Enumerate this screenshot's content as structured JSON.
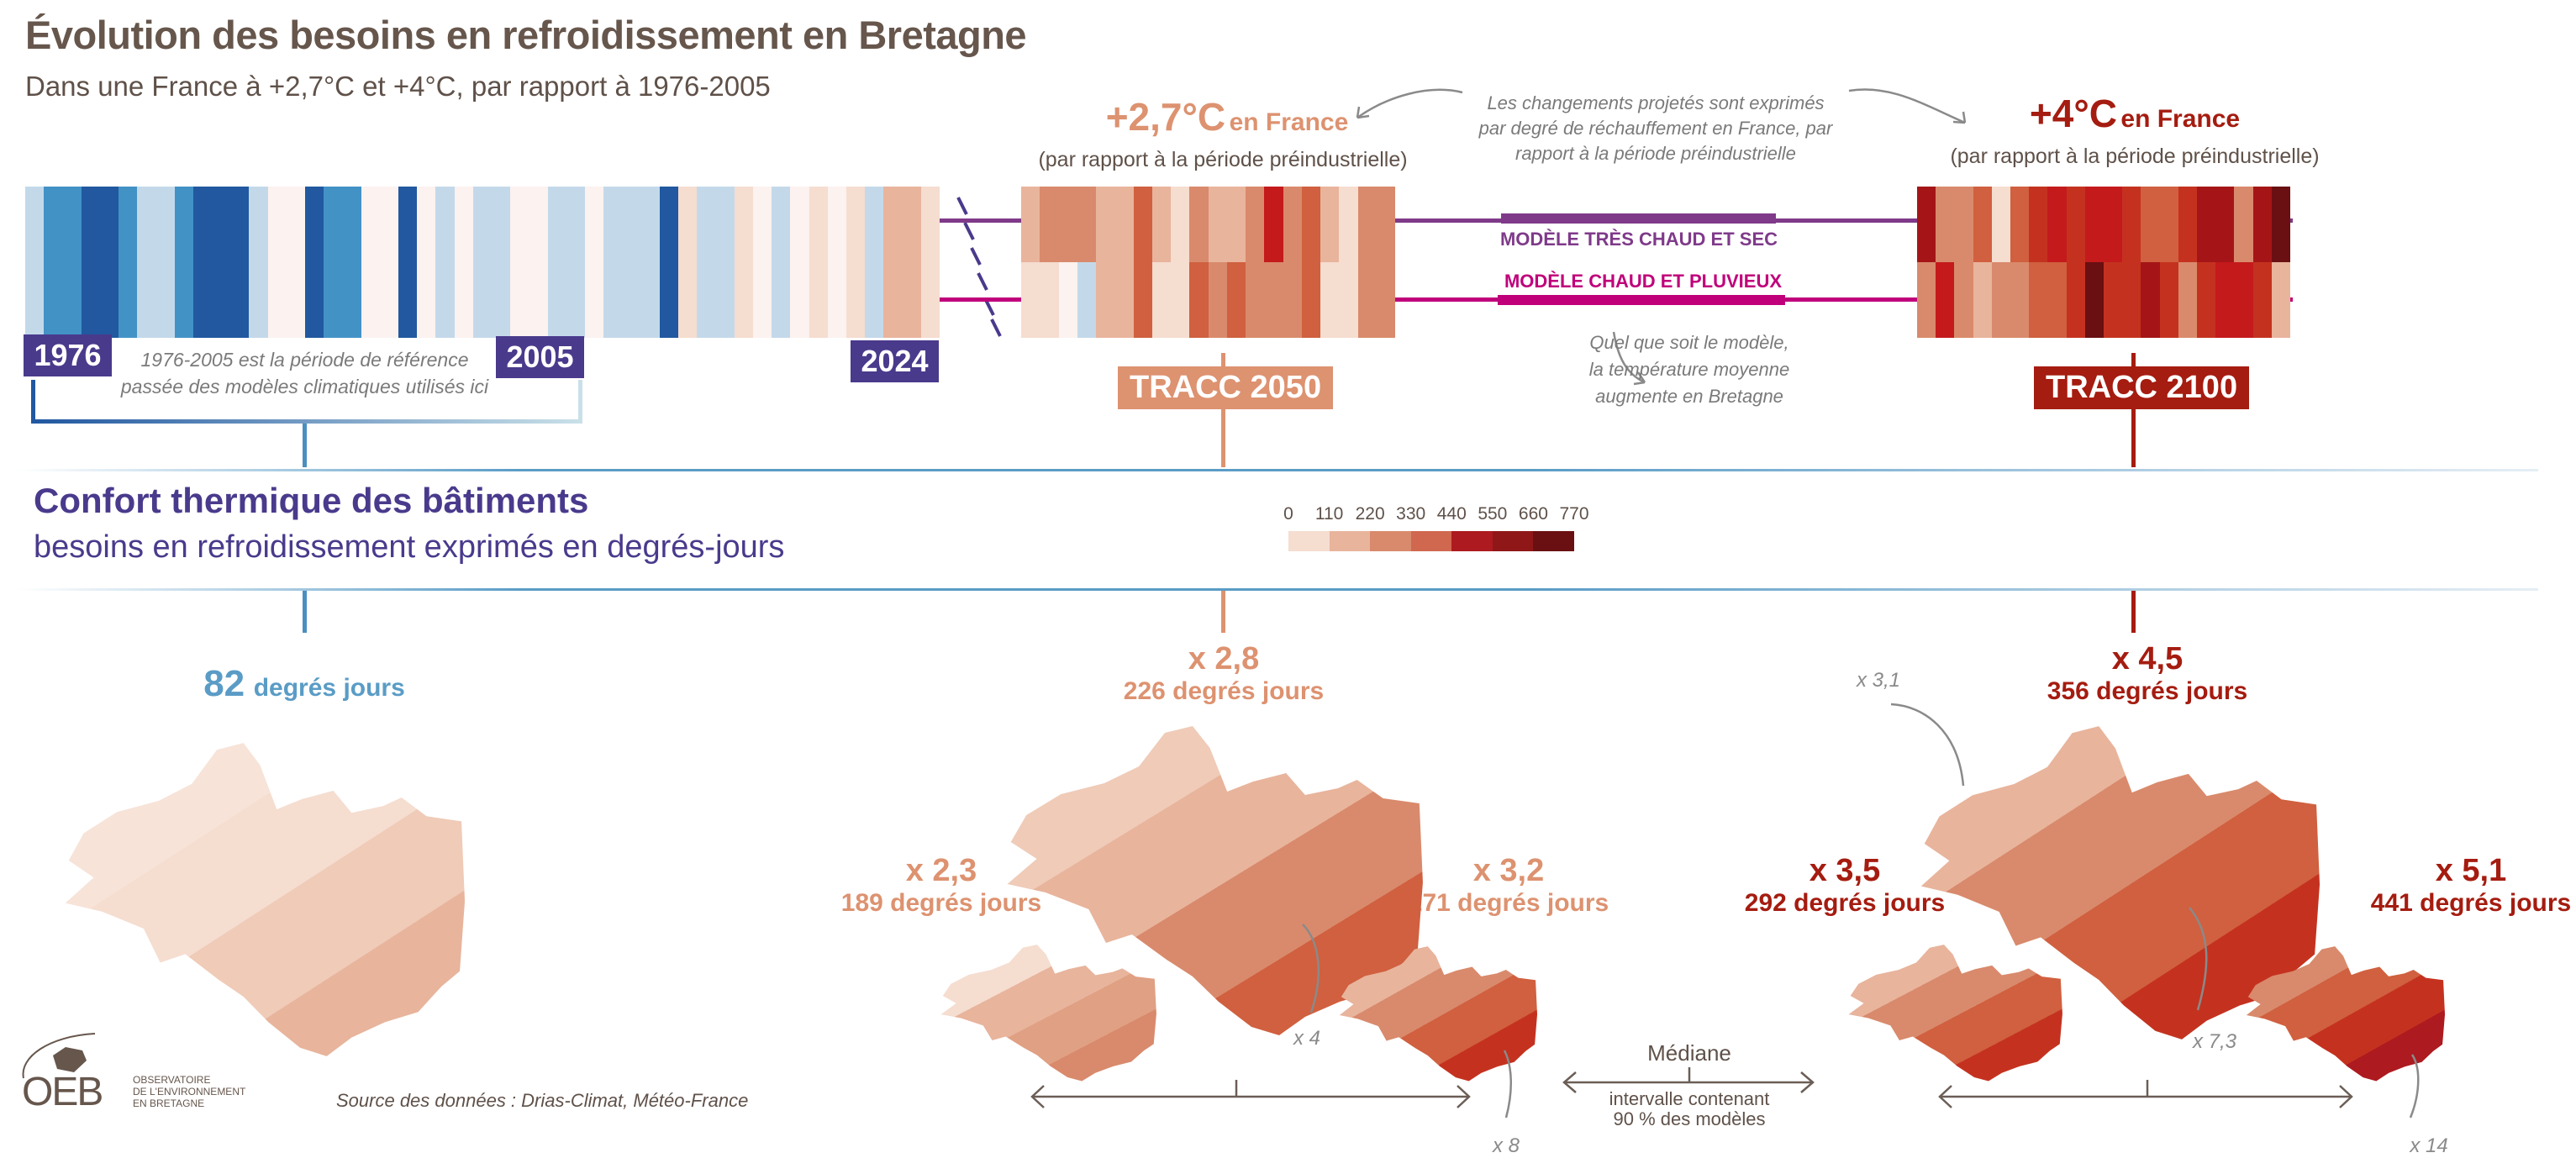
{
  "header": {
    "title": "Évolution des besoins en refroidissement en Bretagne",
    "subtitle": "Dans une France à +2,7°C et +4°C, par rapport à 1976-2005"
  },
  "palette": {
    "b3": "#2158a0",
    "b2": "#4292c6",
    "b1": "#c3d9ea",
    "c": "#fcf2ef",
    "p1": "#f5ddd0",
    "s2": "#e8b49c",
    "s3": "#d98a6c",
    "s4": "#d0603f",
    "r1": "#c41a1c",
    "r2": "#a51517",
    "r3": "#c4321f",
    "r4": "#6a0f12"
  },
  "stripes": {
    "historic": [
      "b1",
      "b2",
      "b2",
      "b3",
      "b3",
      "b2",
      "b1",
      "b1",
      "b2",
      "b3",
      "b3",
      "b3",
      "b1",
      "c",
      "c",
      "b3",
      "b2",
      "b2",
      "c",
      "c",
      "b3",
      "c",
      "b1",
      "c",
      "b1",
      "b1",
      "c",
      "c",
      "b1",
      "b1",
      "c",
      "b1",
      "b1",
      "b1",
      "b3",
      "p1",
      "b1",
      "b1",
      "p1",
      "c",
      "b1",
      "c",
      "p1",
      "c",
      "p1",
      "b1",
      "s2",
      "s2",
      "p1"
    ],
    "tracc2050_hot_dry": [
      "s2",
      "s3",
      "s3",
      "s3",
      "s2",
      "s2",
      "s4",
      "s2",
      "p1",
      "s3",
      "s2",
      "s2",
      "s3",
      "r1",
      "s3",
      "s4",
      "s2",
      "p1",
      "s3",
      "s3"
    ],
    "tracc2050_hot_wet": [
      "p1",
      "p1",
      "c",
      "b1",
      "s2",
      "s2",
      "s4",
      "p1",
      "p1",
      "s4",
      "s3",
      "s4",
      "s3",
      "s3",
      "s3",
      "s4",
      "p1",
      "p1",
      "s3",
      "s3"
    ],
    "tracc2100_hot_dry": [
      "r2",
      "s3",
      "s3",
      "s4",
      "p1",
      "s4",
      "r3",
      "r1",
      "r3",
      "r1",
      "r1",
      "r3",
      "s4",
      "s4",
      "r3",
      "r2",
      "r2",
      "s3",
      "r2",
      "r4"
    ],
    "tracc2100_hot_wet": [
      "s3",
      "r1",
      "s3",
      "s2",
      "s3",
      "s3",
      "s4",
      "s4",
      "r3",
      "r4",
      "r3",
      "r3",
      "r2",
      "r3",
      "s3",
      "r3",
      "r1",
      "r1",
      "r3",
      "s2"
    ]
  },
  "timeline": {
    "year_1976": "1976",
    "year_2005": "2005",
    "year_2024": "2024",
    "reference_note_1": "1976-2005 est la période de référence",
    "reference_note_2": "passée des modèles climatiques utilisés ici"
  },
  "scenario_2050": {
    "temp": "+2,7°C",
    "en_france": "en France",
    "ref": "(par rapport à la période préindustrielle)",
    "label": "TRACC 2050",
    "color": "#dd9270"
  },
  "scenario_2100": {
    "temp": "+4°C",
    "en_france": "en France",
    "ref": "(par rapport à la période préindustrielle)",
    "label": "TRACC 2100",
    "color": "#a51c10"
  },
  "annotations": {
    "projection_1": "Les changements projetés sont exprimés",
    "projection_2": "par degré de réchauffement en France, par",
    "projection_3": "rapport à la période préindustrielle",
    "model_1": "Quel que soit le modèle,",
    "model_2": "la température moyenne",
    "model_3": "augmente en Bretagne"
  },
  "models": {
    "hot_dry": "MODÈLE TRÈS CHAUD ET SEC",
    "hot_dry_color": "#7f3a8a",
    "hot_wet": "MODÈLE CHAUD ET PLUVIEUX",
    "hot_wet_color": "#c0007a"
  },
  "section": {
    "title": "Confort thermique des bâtiments",
    "subtitle": "besoins en refroidissement exprimés en degrés-jours"
  },
  "legend": {
    "ticks": [
      "0",
      "110",
      "220",
      "330",
      "440",
      "550",
      "660",
      "770"
    ],
    "colors": [
      "#f5ddd0",
      "#e8b49c",
      "#d98a6c",
      "#d0684f",
      "#ad1a1f",
      "#8f1718",
      "#6a0f12"
    ]
  },
  "results": {
    "baseline": {
      "value": "82",
      "unit": "degrés jours",
      "color": "#5a9cc6"
    },
    "y2050": {
      "median_mult": "x 2,8",
      "median_value": "226 degrés jours",
      "low_mult": "x 2,3",
      "low_value": "189 degrés jours",
      "high_mult": "x 3,2",
      "high_value": "271 degrés jours",
      "note_x4": "x 4",
      "note_x8": "x 8",
      "color": "#dd9270"
    },
    "y2100": {
      "median_mult": "x 4,5",
      "median_value": "356 degrés jours",
      "low_mult": "x 3,5",
      "low_value": "292 degrés jours",
      "high_mult": "x 5,1",
      "high_value": "441 degrés jours",
      "note_x31": "x 3,1",
      "note_x73": "x 7,3",
      "note_x14": "x 14",
      "color": "#a51c10"
    }
  },
  "maps": {
    "baseline": [
      "#f7e3d8",
      "#f5ddd0",
      "#efcbb8",
      "#e8b49c"
    ],
    "y2050_median": [
      "#efcbb8",
      "#e8b49c",
      "#d98a6c",
      "#d0603f"
    ],
    "y2050_low": [
      "#f5ddd0",
      "#e8b49c",
      "#e0a084",
      "#d98a6c"
    ],
    "y2050_high": [
      "#e8b49c",
      "#d98a6c",
      "#d0603f",
      "#c4321f"
    ],
    "y2100_median": [
      "#e8b49c",
      "#d98a6c",
      "#d0603f",
      "#c4321f"
    ],
    "y2100_low": [
      "#e8b49c",
      "#d98a6c",
      "#d0603f",
      "#c4321f"
    ],
    "y2100_high": [
      "#d98a6c",
      "#d0603f",
      "#c4321f",
      "#ad1a1f"
    ]
  },
  "legend_range": {
    "median": "Médiane",
    "interval_1": "intervalle contenant",
    "interval_2": "90 % des modèles"
  },
  "footer": {
    "logo": "OEB",
    "logo_line1": "OBSERVATOIRE",
    "logo_line2": "DE L'ENVIRONNEMENT",
    "logo_line3": "EN BRETAGNE",
    "source": "Source des données : Drias-Climat, Météo-France"
  }
}
